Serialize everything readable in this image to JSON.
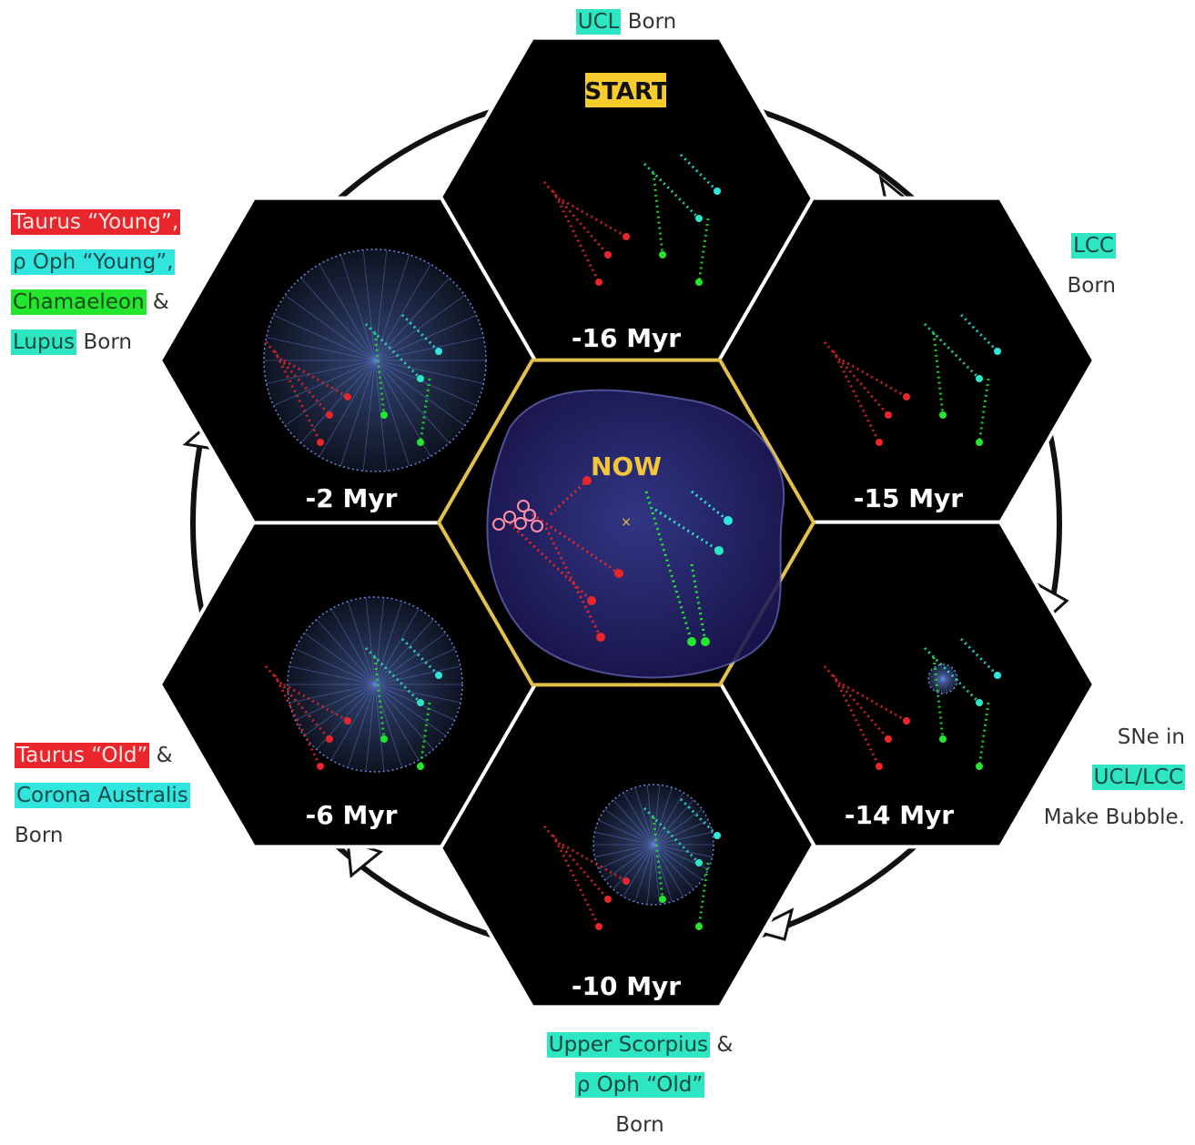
{
  "colors": {
    "hex_fill": "#000000",
    "hex_border": "#ffffff",
    "center_border": "#e2c24a",
    "red_group": "#e8262b",
    "teal_group": "#2ee6c2",
    "cyan_group": "#32e6e0",
    "green_group": "#25e62e",
    "bubble_blue": "#6a88e0",
    "start_highlight": "#f7cc2c"
  },
  "hexagons": {
    "top": {
      "time": "-16 Myr",
      "badge": "START"
    },
    "upper_right": {
      "time": "-15 Myr"
    },
    "lower_right": {
      "time": "-14 Myr"
    },
    "bottom": {
      "time": "-10 Myr"
    },
    "lower_left": {
      "time": "-6 Myr"
    },
    "upper_left": {
      "time": "-2 Myr"
    },
    "center": {
      "time": "NOW"
    }
  },
  "annotations": {
    "top": {
      "group": "UCL",
      "suffix": " Born"
    },
    "upper_right": {
      "group": "LCC",
      "line2": "Born"
    },
    "lower_right": {
      "line1": "SNe in",
      "group": "UCL/LCC",
      "line3": "Make Bubble."
    },
    "bottom": {
      "group1": "Upper Scorpius",
      "amp": " &",
      "group2": "ρ Oph “Old”",
      "line3": "Born"
    },
    "lower_left": {
      "group1": "Taurus “Old”",
      "amp": " &",
      "group2": "Corona Australis",
      "line3": "Born"
    },
    "upper_left": {
      "group1": "Taurus “Young”,",
      "group2": "ρ Oph “Young”,",
      "group3": "Chamaeleon",
      "amp": " &",
      "group4": "Lupus",
      "suffix": " Born"
    }
  }
}
